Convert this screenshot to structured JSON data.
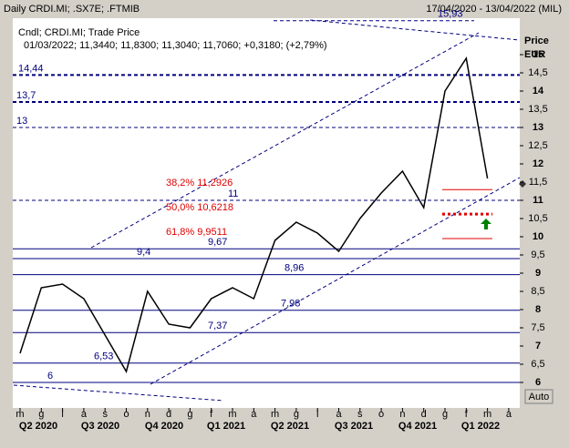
{
  "header": {
    "title": "Daily CRDI.MI; .SX7E; .FTMIB",
    "range": "17/04/2020 - 13/04/2022 (MIL)"
  },
  "chart_data": {
    "type": "line",
    "legend_lines": [
      "Cndl; CRDI.MI; Trade Price",
      "01/03/2022; 11,3440; 11,8300; 11,3040; 11,7060; +0,3180; (+2,79%)"
    ],
    "y_title": [
      "Price",
      "EUR"
    ],
    "scale_button": "Auto",
    "categories": [
      "m",
      "g",
      "l",
      "a",
      "s",
      "o",
      "n",
      "d",
      "g",
      "f",
      "m",
      "a",
      "m",
      "g",
      "l",
      "a",
      "s",
      "o",
      "n",
      "d",
      "g",
      "f",
      "m",
      "a"
    ],
    "quarters": [
      "Q2 2020",
      "Q3 2020",
      "Q4 2020",
      "Q1 2021",
      "Q2 2021",
      "Q3 2021",
      "Q4 2021",
      "Q1 2022"
    ],
    "series": [
      {
        "name": "CRDI.MI",
        "color": "#000000",
        "values": [
          6.8,
          8.6,
          8.7,
          8.3,
          7.3,
          6.3,
          8.5,
          7.6,
          7.5,
          8.3,
          8.6,
          8.3,
          9.9,
          10.4,
          10.1,
          9.6,
          10.5,
          11.2,
          11.8,
          10.8,
          14.0,
          14.9,
          11.6,
          null
        ]
      }
    ],
    "ylim": [
      5.3,
      16
    ],
    "yticks": [
      6,
      {
        "value": 6.5,
        "label": "6,5"
      },
      7,
      {
        "value": 7.5,
        "label": "7,5"
      },
      8,
      {
        "value": 8.5,
        "label": "8,5"
      },
      9,
      {
        "value": 9.5,
        "label": "9,5"
      },
      10,
      {
        "value": 10.5,
        "label": "10,5"
      },
      11,
      {
        "value": 11.5,
        "label": "11,5"
      },
      12,
      {
        "value": 12.5,
        "label": "12,5"
      },
      13,
      {
        "value": 13.5,
        "label": "13,5"
      },
      14,
      {
        "value": 14.5,
        "label": "14,5"
      },
      15
    ],
    "levels": [
      {
        "value": 15.93,
        "label": "15,93"
      },
      {
        "value": 14.44,
        "label": "14,44"
      },
      {
        "value": 13.7,
        "label": "13,7"
      },
      {
        "value": 13,
        "label": "13"
      },
      {
        "value": 11,
        "label": "11"
      },
      {
        "value": 9.67,
        "label": "9,67"
      },
      {
        "value": 9.4,
        "label": "9,4"
      },
      {
        "value": 8.96,
        "label": "8,96"
      },
      {
        "value": 7.98,
        "label": "7,98"
      },
      {
        "value": 7.37,
        "label": "7,37"
      },
      {
        "value": 6.53,
        "label": "6,53"
      },
      {
        "value": 6,
        "label": "6"
      }
    ],
    "fib": [
      {
        "value": 11.2926,
        "label": "38,2% 11,2926"
      },
      {
        "value": 10.6218,
        "label": "50,0% 10,6218"
      },
      {
        "value": 9.9511,
        "label": "61,8% 9,9511"
      }
    ]
  }
}
